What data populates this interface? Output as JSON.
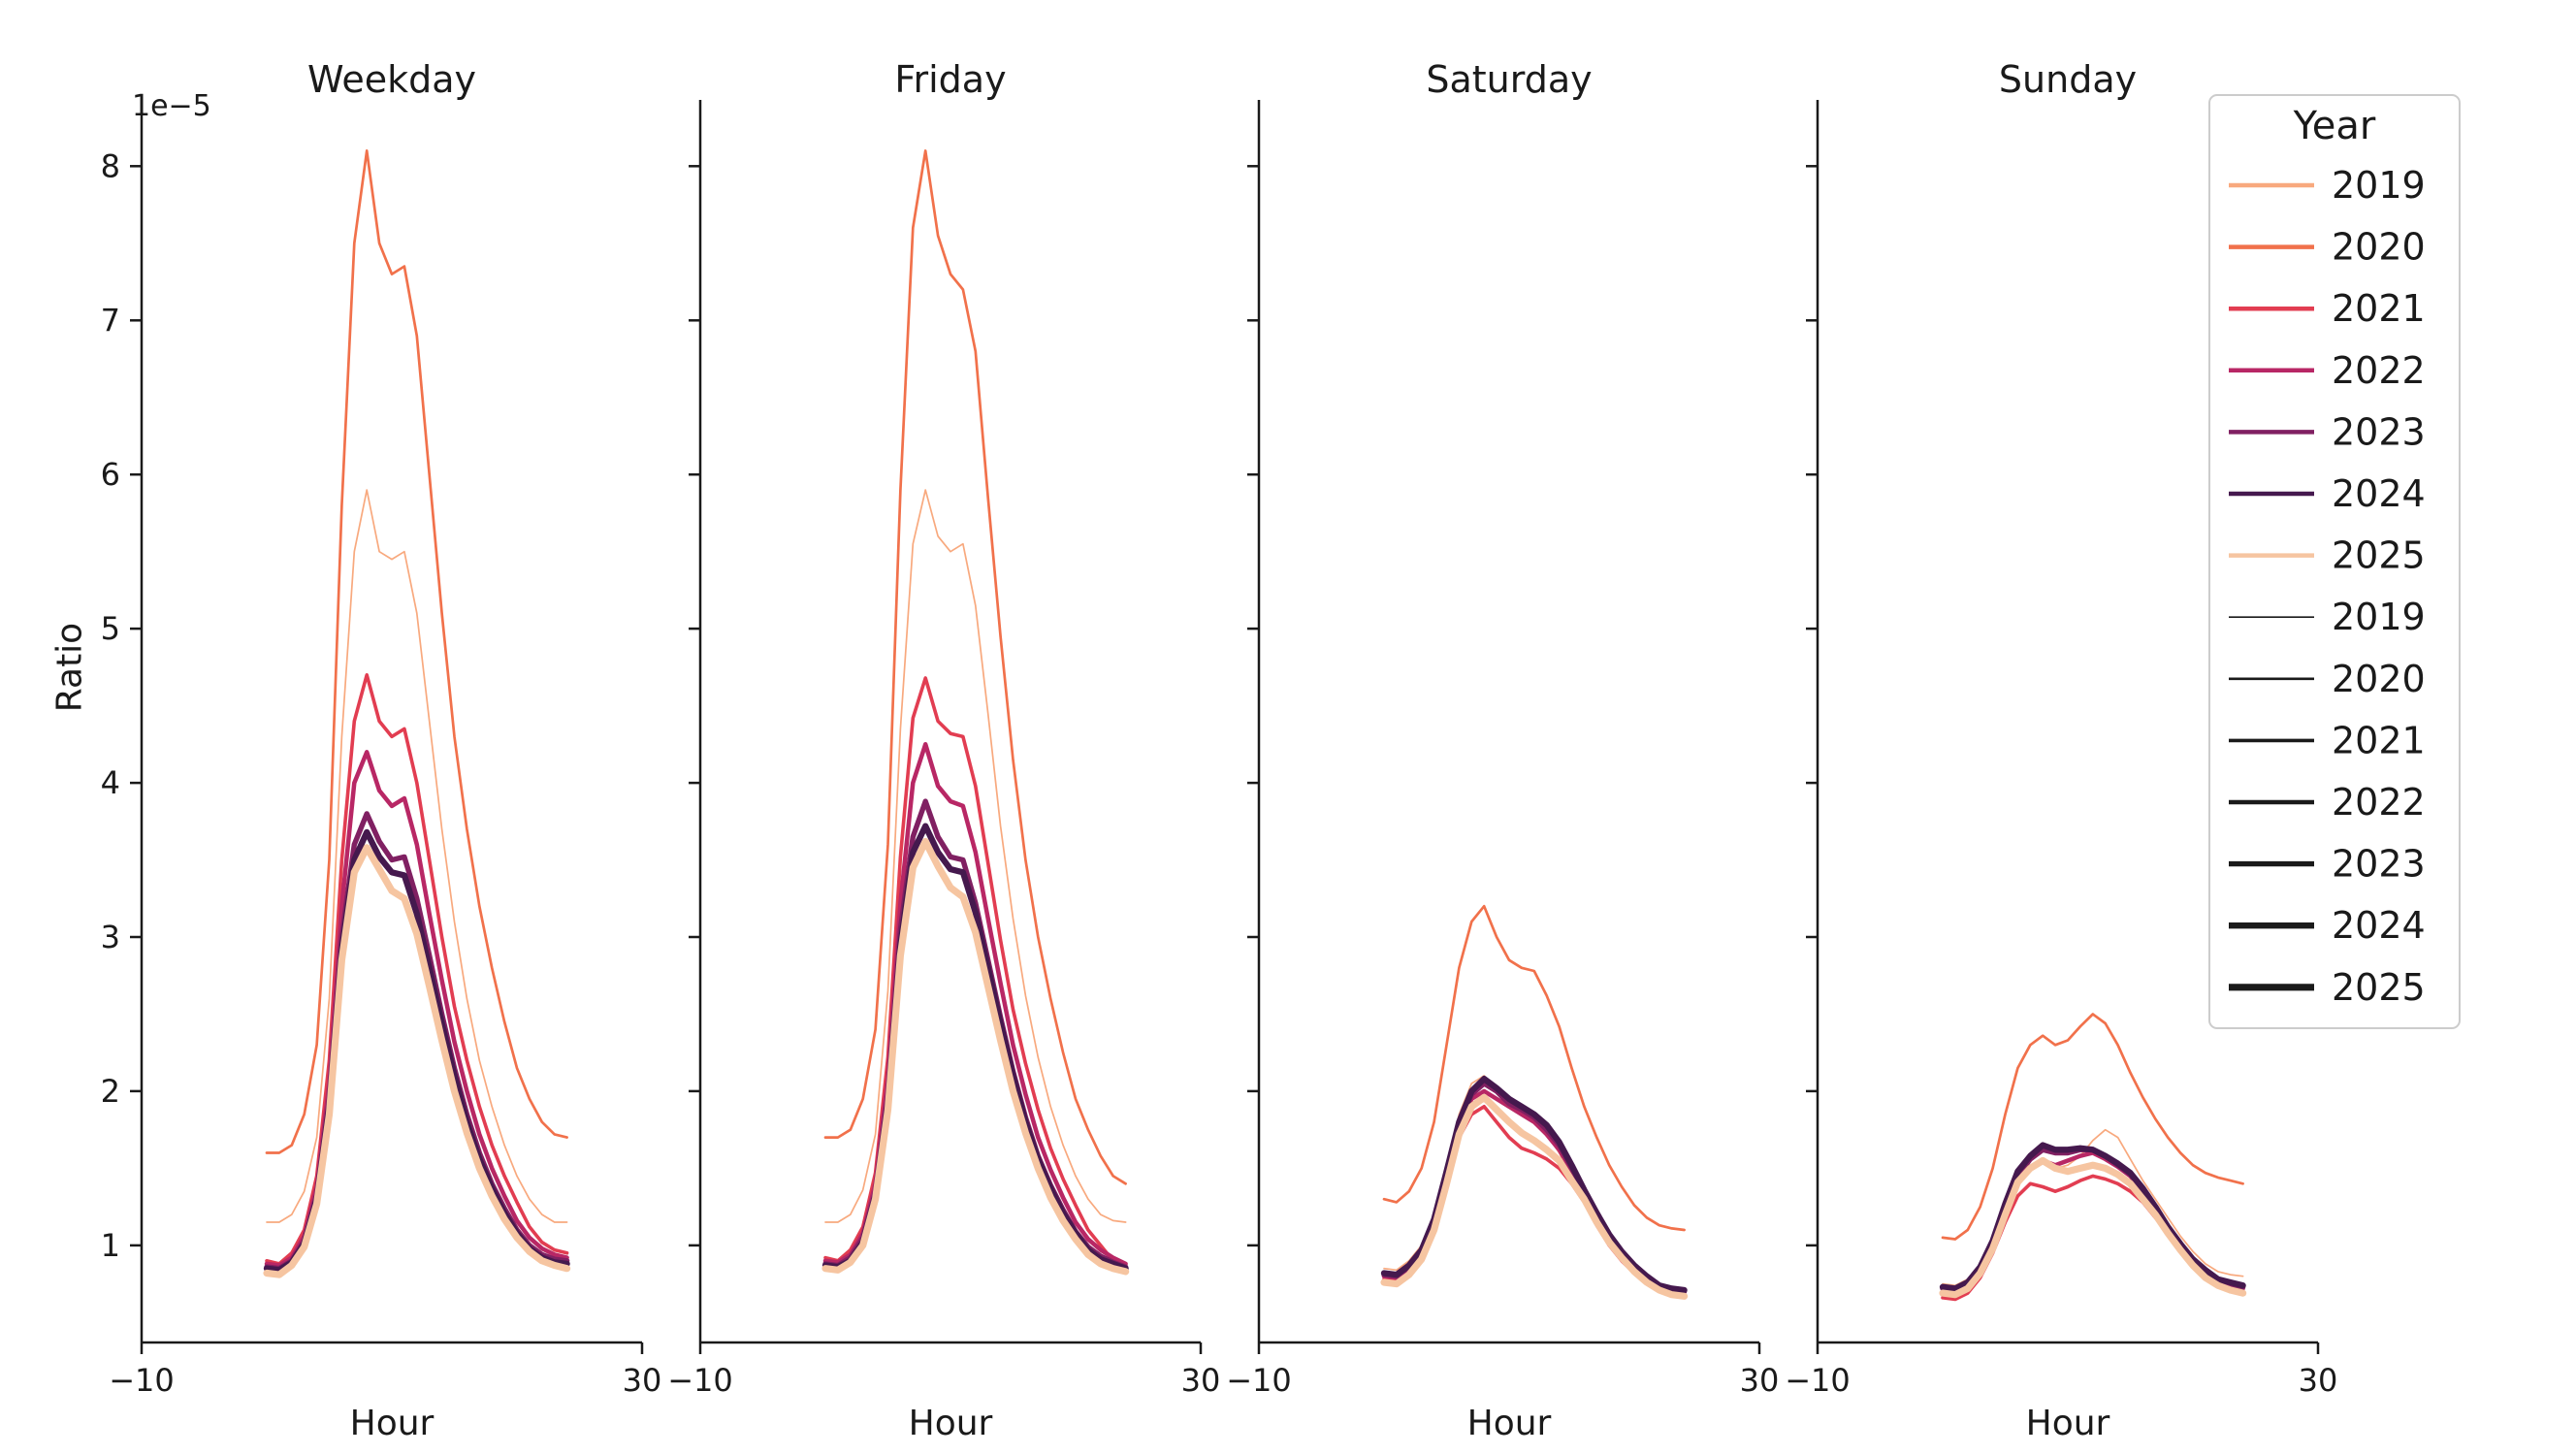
{
  "figure": {
    "ylabel": "Ratio",
    "xlabel": "Hour",
    "offset_label": "1e−5",
    "x_tick_labels": [
      "−10",
      "30"
    ],
    "x_tick_values": [
      -10,
      30
    ],
    "y_ticks": [
      1,
      2,
      3,
      4,
      5,
      6,
      7,
      8
    ],
    "text_color": "#1a1a1a",
    "spine_color": "#1a1a1a",
    "background": "#ffffff"
  },
  "styles": {
    "2019": {
      "color": "#F8A97E",
      "width": 1.7
    },
    "2020": {
      "color": "#F1714B",
      "width": 2.7
    },
    "2021": {
      "color": "#E23D51",
      "width": 3.6
    },
    "2022": {
      "color": "#B82765",
      "width": 4.5
    },
    "2023": {
      "color": "#802062",
      "width": 5.4
    },
    "2024": {
      "color": "#45194E",
      "width": 6.3
    },
    "2025": {
      "color": "#F6C5A1",
      "width": 7.2
    }
  },
  "legend": {
    "title": "Year",
    "swatch_width": 4.5,
    "size_color": "#1a1a1a",
    "border_color": "#cccccc",
    "color_entries": [
      {
        "label": "2019",
        "color": "#F8A97E"
      },
      {
        "label": "2020",
        "color": "#F1714B"
      },
      {
        "label": "2021",
        "color": "#E23D51"
      },
      {
        "label": "2022",
        "color": "#B82765"
      },
      {
        "label": "2023",
        "color": "#802062"
      },
      {
        "label": "2024",
        "color": "#45194E"
      },
      {
        "label": "2025",
        "color": "#F6C5A1"
      }
    ],
    "size_entries": [
      {
        "label": "2019",
        "width": 1.7
      },
      {
        "label": "2020",
        "width": 2.7
      },
      {
        "label": "2021",
        "width": 3.6
      },
      {
        "label": "2022",
        "width": 4.5
      },
      {
        "label": "2023",
        "width": 5.4
      },
      {
        "label": "2024",
        "width": 6.3
      },
      {
        "label": "2025",
        "width": 7.2
      }
    ]
  },
  "chart_data": {
    "type": "line",
    "xlabel": "Hour",
    "ylabel": "Ratio",
    "y_scale": "1e-5",
    "xlim": [
      -10,
      30
    ],
    "ylim": [
      0.37,
      8.43
    ],
    "grid": false,
    "legend_position": "upper right",
    "x": [
      0,
      1,
      2,
      3,
      4,
      5,
      6,
      7,
      8,
      9,
      10,
      11,
      12,
      13,
      14,
      15,
      16,
      17,
      18,
      19,
      20,
      21,
      22,
      23,
      24
    ],
    "facets": [
      {
        "title": "Weekday",
        "series": [
          {
            "name": "2019",
            "values": [
              1.15,
              1.15,
              1.2,
              1.35,
              1.7,
              2.6,
              4.3,
              5.5,
              5.9,
              5.5,
              5.45,
              5.5,
              5.1,
              4.4,
              3.7,
              3.1,
              2.6,
              2.2,
              1.9,
              1.65,
              1.45,
              1.3,
              1.2,
              1.15,
              1.15
            ]
          },
          {
            "name": "2020",
            "values": [
              1.6,
              1.6,
              1.65,
              1.85,
              2.3,
              3.5,
              5.8,
              7.5,
              8.1,
              7.5,
              7.3,
              7.35,
              6.9,
              6.0,
              5.1,
              4.3,
              3.7,
              3.2,
              2.8,
              2.45,
              2.15,
              1.95,
              1.8,
              1.72,
              1.7
            ]
          },
          {
            "name": "2021",
            "values": [
              0.9,
              0.88,
              0.95,
              1.1,
              1.45,
              2.2,
              3.5,
              4.4,
              4.7,
              4.4,
              4.3,
              4.35,
              4.0,
              3.5,
              3.0,
              2.55,
              2.2,
              1.9,
              1.65,
              1.45,
              1.28,
              1.12,
              1.02,
              0.97,
              0.95
            ]
          },
          {
            "name": "2022",
            "values": [
              0.88,
              0.87,
              0.92,
              1.06,
              1.38,
              2.05,
              3.2,
              4.0,
              4.2,
              3.95,
              3.85,
              3.9,
              3.6,
              3.15,
              2.72,
              2.32,
              2.0,
              1.72,
              1.5,
              1.32,
              1.16,
              1.05,
              0.98,
              0.94,
              0.92
            ]
          },
          {
            "name": "2023",
            "values": [
              0.86,
              0.85,
              0.9,
              1.03,
              1.33,
              1.95,
              3.0,
              3.6,
              3.8,
              3.62,
              3.5,
              3.52,
              3.25,
              2.88,
              2.5,
              2.15,
              1.85,
              1.6,
              1.4,
              1.24,
              1.1,
              1.0,
              0.94,
              0.91,
              0.9
            ]
          },
          {
            "name": "2024",
            "values": [
              0.85,
              0.84,
              0.89,
              1.01,
              1.3,
              1.9,
              2.92,
              3.5,
              3.68,
              3.52,
              3.42,
              3.4,
              3.15,
              2.8,
              2.44,
              2.1,
              1.8,
              1.56,
              1.37,
              1.21,
              1.08,
              0.98,
              0.92,
              0.89,
              0.88
            ]
          },
          {
            "name": "2025",
            "values": [
              0.82,
              0.81,
              0.87,
              0.99,
              1.27,
              1.85,
              2.85,
              3.42,
              3.58,
              3.44,
              3.3,
              3.25,
              3.02,
              2.68,
              2.33,
              2.0,
              1.73,
              1.5,
              1.32,
              1.17,
              1.05,
              0.96,
              0.9,
              0.87,
              0.85
            ]
          }
        ]
      },
      {
        "title": "Friday",
        "series": [
          {
            "name": "2019",
            "values": [
              1.15,
              1.15,
              1.2,
              1.36,
              1.72,
              2.65,
              4.35,
              5.55,
              5.9,
              5.6,
              5.5,
              5.55,
              5.15,
              4.45,
              3.72,
              3.12,
              2.62,
              2.22,
              1.9,
              1.65,
              1.45,
              1.3,
              1.2,
              1.16,
              1.15
            ]
          },
          {
            "name": "2020",
            "values": [
              1.7,
              1.7,
              1.75,
              1.95,
              2.4,
              3.6,
              5.9,
              7.6,
              8.1,
              7.55,
              7.3,
              7.2,
              6.8,
              5.85,
              4.95,
              4.15,
              3.5,
              3.0,
              2.6,
              2.25,
              1.95,
              1.75,
              1.58,
              1.45,
              1.4
            ]
          },
          {
            "name": "2021",
            "values": [
              0.92,
              0.9,
              0.97,
              1.12,
              1.47,
              2.22,
              3.52,
              4.42,
              4.68,
              4.4,
              4.32,
              4.3,
              3.98,
              3.48,
              2.98,
              2.53,
              2.18,
              1.88,
              1.63,
              1.43,
              1.26,
              1.1,
              1.0,
              0.9,
              0.82
            ]
          },
          {
            "name": "2022",
            "values": [
              0.9,
              0.89,
              0.94,
              1.08,
              1.4,
              2.08,
              3.22,
              4.0,
              4.25,
              3.98,
              3.88,
              3.85,
              3.55,
              3.12,
              2.7,
              2.3,
              1.98,
              1.7,
              1.49,
              1.31,
              1.15,
              1.04,
              0.97,
              0.92,
              0.88
            ]
          },
          {
            "name": "2023",
            "values": [
              0.88,
              0.87,
              0.92,
              1.05,
              1.35,
              1.98,
              3.05,
              3.65,
              3.88,
              3.65,
              3.52,
              3.5,
              3.22,
              2.85,
              2.48,
              2.13,
              1.83,
              1.58,
              1.39,
              1.23,
              1.09,
              0.99,
              0.93,
              0.89,
              0.86
            ]
          },
          {
            "name": "2024",
            "values": [
              0.87,
              0.86,
              0.9,
              1.02,
              1.32,
              1.92,
              2.95,
              3.55,
              3.72,
              3.55,
              3.44,
              3.42,
              3.16,
              2.8,
              2.44,
              2.1,
              1.8,
              1.56,
              1.37,
              1.21,
              1.08,
              0.97,
              0.91,
              0.88,
              0.85
            ]
          },
          {
            "name": "2025",
            "values": [
              0.85,
              0.84,
              0.89,
              1.0,
              1.3,
              1.88,
              2.88,
              3.45,
              3.62,
              3.46,
              3.32,
              3.26,
              3.03,
              2.68,
              2.33,
              2.0,
              1.73,
              1.5,
              1.31,
              1.16,
              1.04,
              0.94,
              0.88,
              0.85,
              0.83
            ]
          }
        ]
      },
      {
        "title": "Saturday",
        "series": [
          {
            "name": "2019",
            "values": [
              0.85,
              0.84,
              0.9,
              1.0,
              1.2,
              1.52,
              1.85,
              2.05,
              2.1,
              2.0,
              1.9,
              1.85,
              1.8,
              1.72,
              1.6,
              1.45,
              1.3,
              1.16,
              1.04,
              0.94,
              0.85,
              0.79,
              0.75,
              0.73,
              0.72
            ]
          },
          {
            "name": "2020",
            "values": [
              1.3,
              1.28,
              1.35,
              1.5,
              1.8,
              2.3,
              2.8,
              3.1,
              3.2,
              3.0,
              2.85,
              2.8,
              2.78,
              2.62,
              2.42,
              2.15,
              1.9,
              1.7,
              1.52,
              1.38,
              1.26,
              1.18,
              1.13,
              1.11,
              1.1
            ]
          },
          {
            "name": "2021",
            "values": [
              0.78,
              0.77,
              0.82,
              0.92,
              1.1,
              1.4,
              1.7,
              1.85,
              1.9,
              1.8,
              1.7,
              1.63,
              1.6,
              1.56,
              1.5,
              1.4,
              1.28,
              1.13,
              1.0,
              0.9,
              0.82,
              0.75,
              0.7,
              0.68,
              0.67
            ]
          },
          {
            "name": "2022",
            "values": [
              0.8,
              0.79,
              0.85,
              0.95,
              1.15,
              1.45,
              1.76,
              1.95,
              2.0,
              1.95,
              1.9,
              1.85,
              1.8,
              1.72,
              1.62,
              1.48,
              1.32,
              1.18,
              1.05,
              0.95,
              0.85,
              0.78,
              0.73,
              0.71,
              0.7
            ]
          },
          {
            "name": "2023",
            "values": [
              0.81,
              0.8,
              0.86,
              0.96,
              1.16,
              1.46,
              1.78,
              1.98,
              2.05,
              2.0,
              1.92,
              1.88,
              1.83,
              1.75,
              1.65,
              1.5,
              1.35,
              1.2,
              1.06,
              0.96,
              0.86,
              0.79,
              0.74,
              0.71,
              0.7
            ]
          },
          {
            "name": "2024",
            "values": [
              0.82,
              0.81,
              0.87,
              0.97,
              1.17,
              1.48,
              1.8,
              2.0,
              2.08,
              2.02,
              1.95,
              1.9,
              1.85,
              1.78,
              1.67,
              1.52,
              1.36,
              1.21,
              1.07,
              0.96,
              0.87,
              0.8,
              0.74,
              0.72,
              0.71
            ]
          },
          {
            "name": "2025",
            "values": [
              0.76,
              0.75,
              0.81,
              0.91,
              1.1,
              1.4,
              1.72,
              1.9,
              1.96,
              1.88,
              1.8,
              1.73,
              1.68,
              1.62,
              1.55,
              1.42,
              1.3,
              1.15,
              1.02,
              0.92,
              0.83,
              0.76,
              0.71,
              0.68,
              0.67
            ]
          }
        ]
      },
      {
        "title": "Sunday",
        "series": [
          {
            "name": "2019",
            "values": [
              0.75,
              0.74,
              0.78,
              0.88,
              1.05,
              1.26,
              1.42,
              1.5,
              1.53,
              1.5,
              1.52,
              1.58,
              1.68,
              1.75,
              1.7,
              1.56,
              1.42,
              1.3,
              1.18,
              1.06,
              0.96,
              0.88,
              0.83,
              0.81,
              0.8
            ]
          },
          {
            "name": "2020",
            "values": [
              1.05,
              1.04,
              1.1,
              1.25,
              1.5,
              1.85,
              2.15,
              2.3,
              2.36,
              2.3,
              2.33,
              2.42,
              2.5,
              2.44,
              2.3,
              2.12,
              1.96,
              1.82,
              1.7,
              1.6,
              1.52,
              1.47,
              1.44,
              1.42,
              1.4
            ]
          },
          {
            "name": "2021",
            "values": [
              0.66,
              0.65,
              0.69,
              0.79,
              0.95,
              1.15,
              1.32,
              1.4,
              1.38,
              1.35,
              1.38,
              1.42,
              1.45,
              1.43,
              1.4,
              1.35,
              1.28,
              1.18,
              1.08,
              0.98,
              0.88,
              0.8,
              0.75,
              0.72,
              0.7
            ]
          },
          {
            "name": "2022",
            "values": [
              0.7,
              0.69,
              0.73,
              0.83,
              1.0,
              1.2,
              1.4,
              1.5,
              1.55,
              1.52,
              1.55,
              1.58,
              1.6,
              1.56,
              1.51,
              1.45,
              1.35,
              1.22,
              1.1,
              1.0,
              0.9,
              0.82,
              0.77,
              0.74,
              0.72
            ]
          },
          {
            "name": "2023",
            "values": [
              0.72,
              0.71,
              0.75,
              0.85,
              1.02,
              1.25,
              1.45,
              1.56,
              1.62,
              1.6,
              1.6,
              1.62,
              1.62,
              1.58,
              1.52,
              1.46,
              1.36,
              1.24,
              1.12,
              1.0,
              0.9,
              0.83,
              0.78,
              0.75,
              0.73
            ]
          },
          {
            "name": "2024",
            "values": [
              0.73,
              0.72,
              0.76,
              0.86,
              1.03,
              1.27,
              1.48,
              1.58,
              1.65,
              1.62,
              1.62,
              1.63,
              1.62,
              1.58,
              1.53,
              1.47,
              1.37,
              1.25,
              1.12,
              1.01,
              0.91,
              0.84,
              0.78,
              0.76,
              0.74
            ]
          },
          {
            "name": "2025",
            "values": [
              0.69,
              0.68,
              0.72,
              0.82,
              0.98,
              1.2,
              1.41,
              1.5,
              1.55,
              1.5,
              1.48,
              1.5,
              1.52,
              1.5,
              1.46,
              1.4,
              1.3,
              1.2,
              1.08,
              0.97,
              0.87,
              0.79,
              0.74,
              0.71,
              0.69
            ]
          }
        ]
      }
    ]
  }
}
